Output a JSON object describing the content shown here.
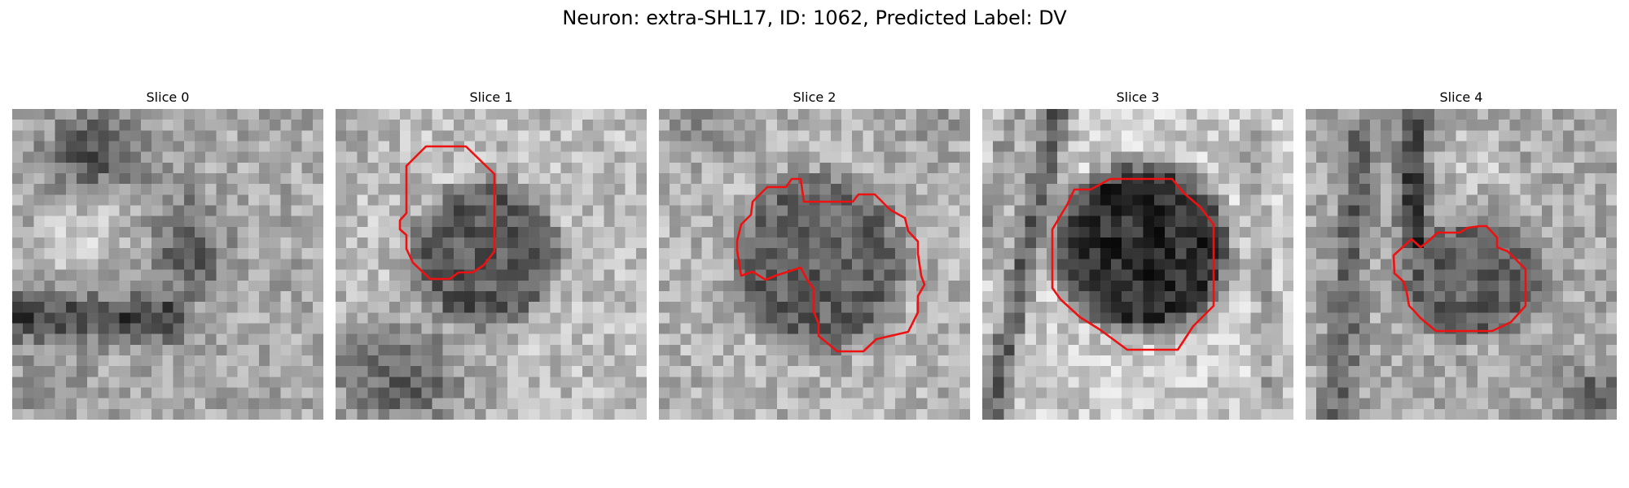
{
  "figure": {
    "title": "Neuron: extra-SHL17, ID: 1062, Predicted Label: DV",
    "contour_color": "#ee1111"
  },
  "slices": [
    {
      "title": "Slice 0",
      "has_contour": false
    },
    {
      "title": "Slice 1",
      "has_contour": true
    },
    {
      "title": "Slice 2",
      "has_contour": true
    },
    {
      "title": "Slice 3",
      "has_contour": true
    },
    {
      "title": "Slice 4",
      "has_contour": true
    }
  ]
}
